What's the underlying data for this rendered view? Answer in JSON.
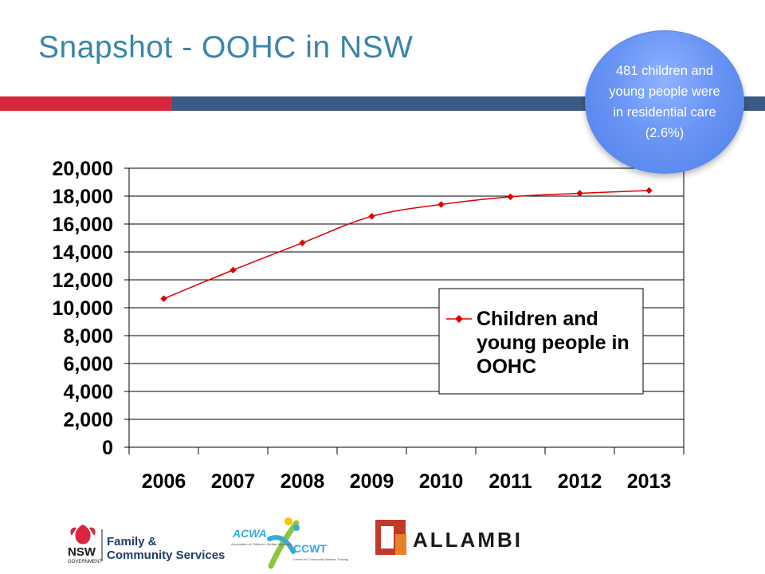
{
  "slide": {
    "title": "Snapshot - OOHC in NSW"
  },
  "callout": {
    "text": "481 children and young people were in residential care (2.6%)"
  },
  "chart_data": {
    "type": "line",
    "x": [
      "2006",
      "2007",
      "2008",
      "2009",
      "2010",
      "2011",
      "2012",
      "2013"
    ],
    "series": [
      {
        "name": "Children and young people in OOHC",
        "values": [
          10650,
          12700,
          14650,
          16550,
          17400,
          17950,
          18200,
          18400
        ]
      }
    ],
    "ylim": [
      0,
      20000
    ],
    "yticks": [
      "0",
      "2,000",
      "4,000",
      "6,000",
      "8,000",
      "10,000",
      "12,000",
      "14,000",
      "16,000",
      "18,000",
      "20,000"
    ],
    "grid": true,
    "legend": "right",
    "colors": {
      "series": "#e00000",
      "grid": "#000000"
    }
  },
  "logos": {
    "nsw_line1": "NSW",
    "nsw_line2": "GOVERNMENT",
    "fcs_line1": "Family &",
    "fcs_line2": "Community Services",
    "acwa": "ACWA",
    "acwa_sub": "Association of Children's Welfare Agencies",
    "ccwt": "CCWT",
    "ccwt_sub": "Centre for Community Welfare Training",
    "allambi": "ALLAMBI"
  }
}
